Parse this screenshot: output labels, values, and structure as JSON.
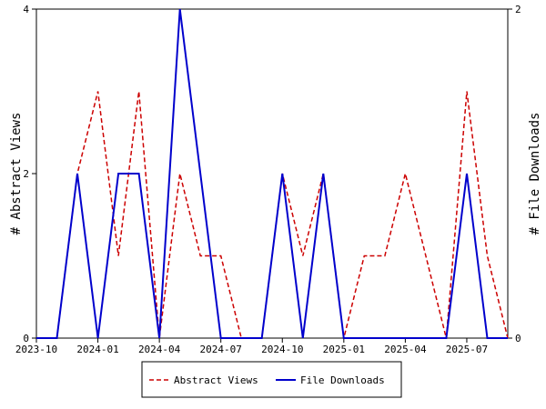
{
  "chart_data": {
    "type": "line",
    "x": [
      "2023-10",
      "2023-11",
      "2023-12",
      "2024-01",
      "2024-02",
      "2024-03",
      "2024-04",
      "2024-05",
      "2024-06",
      "2024-07",
      "2024-08",
      "2024-09",
      "2024-10",
      "2024-11",
      "2024-12",
      "2025-01",
      "2025-02",
      "2025-03",
      "2025-04",
      "2025-05",
      "2025-06",
      "2025-07",
      "2025-08",
      "2025-09"
    ],
    "x_ticks": [
      "2023-10",
      "2024-01",
      "2024-04",
      "2024-07",
      "2024-10",
      "2025-01",
      "2025-04",
      "2025-07"
    ],
    "y_left": {
      "label": "# Abstract Views",
      "ticks": [
        "0",
        "2",
        "4"
      ],
      "range": [
        0,
        4
      ]
    },
    "y_right": {
      "label": "# File Downloads",
      "ticks": [
        "0",
        "2"
      ],
      "range": [
        0,
        2
      ]
    },
    "series": [
      {
        "name": "Abstract Views",
        "axis": "left",
        "color": "#cc0000",
        "dash": "dashed",
        "values": [
          0,
          0,
          2,
          3,
          1,
          3,
          0,
          2,
          1,
          1,
          0,
          0,
          2,
          1,
          2,
          0,
          1,
          1,
          2,
          1,
          0,
          3,
          1,
          0
        ]
      },
      {
        "name": "File Downloads",
        "axis": "right",
        "color": "#0000cc",
        "dash": "solid",
        "values": [
          0,
          0,
          1,
          0,
          1,
          1,
          0,
          2,
          1,
          0,
          0,
          0,
          1,
          0,
          1,
          0,
          0,
          0,
          0,
          0,
          0,
          1,
          0,
          0
        ]
      }
    ],
    "legend": {
      "placement": "bottom"
    },
    "grid": false
  }
}
